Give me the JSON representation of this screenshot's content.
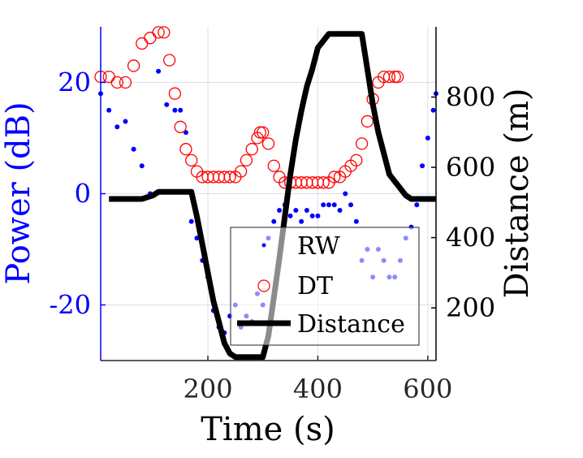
{
  "chart_data": {
    "type": "line",
    "xlabel": "Time (s)",
    "ylabel_left": "Power (dB)",
    "ylabel_right": "Distance (m)",
    "xlim": [
      5,
      615
    ],
    "ylim_left": [
      -30,
      30
    ],
    "ylim_right": [
      50,
      1000
    ],
    "xticks": [
      200,
      400,
      600
    ],
    "yticks_left": [
      -20,
      0,
      20
    ],
    "yticks_right": [
      200,
      400,
      600,
      800
    ],
    "grid": true,
    "legend_position": "bottom-right",
    "colors": {
      "rw": "#0000ff",
      "dt": "#ff0000",
      "distance": "#000000",
      "left_axis": "#0000ff"
    },
    "series": [
      {
        "name": "RW",
        "marker": "dot",
        "axis": "left",
        "x": [
          5,
          20,
          35,
          50,
          65,
          80,
          95,
          110,
          125,
          140,
          150,
          160,
          170,
          180,
          190,
          200,
          210,
          220,
          230,
          240,
          250,
          260,
          270,
          280,
          290,
          300,
          310,
          320,
          330,
          340,
          350,
          360,
          370,
          380,
          390,
          400,
          410,
          420,
          430,
          440,
          450,
          460,
          470,
          480,
          490,
          500,
          510,
          520,
          530,
          540,
          550,
          560,
          570,
          580,
          590,
          600,
          610,
          615
        ],
        "y": [
          18,
          15,
          12,
          13,
          8,
          5,
          0,
          22,
          16,
          15,
          15,
          11,
          -5,
          -8,
          -12,
          -15,
          -21,
          -24,
          -25,
          -22,
          -20,
          -24,
          -22,
          -23,
          -18,
          -20,
          -8,
          -5,
          -3,
          -2,
          -4,
          -3,
          -5,
          -3,
          -4,
          -4,
          -2,
          -2,
          -2,
          -3,
          0,
          -2,
          -5,
          -12,
          -10,
          -15,
          -10,
          -12,
          -15,
          -15,
          -12,
          -8,
          -6,
          -2,
          5,
          10,
          15,
          18
        ]
      },
      {
        "name": "DT",
        "marker": "circle",
        "axis": "left",
        "x": [
          5,
          20,
          35,
          50,
          65,
          80,
          95,
          110,
          120,
          130,
          140,
          150,
          160,
          170,
          180,
          190,
          200,
          210,
          220,
          230,
          240,
          250,
          260,
          270,
          280,
          290,
          295,
          300,
          310,
          320,
          330,
          340,
          350,
          360,
          370,
          380,
          390,
          400,
          410,
          420,
          430,
          440,
          450,
          460,
          470,
          480,
          490,
          500,
          510,
          520,
          530,
          540,
          545
        ],
        "y": [
          21,
          21,
          20,
          20,
          23,
          27,
          28,
          29,
          29,
          24,
          18,
          12,
          8,
          6,
          4,
          3,
          3,
          3,
          3,
          3,
          3,
          3,
          4,
          6,
          8,
          10,
          11,
          11,
          9,
          5,
          3,
          2,
          2,
          2,
          2,
          2,
          2,
          2,
          2,
          2,
          3,
          3,
          4,
          5,
          6,
          9,
          13,
          17,
          20,
          21,
          21,
          21,
          21
        ]
      },
      {
        "name": "Distance",
        "marker": "line",
        "axis": "right",
        "x": [
          20,
          80,
          100,
          110,
          170,
          180,
          190,
          200,
          210,
          220,
          230,
          240,
          250,
          260,
          300,
          310,
          320,
          330,
          340,
          350,
          360,
          370,
          380,
          390,
          400,
          410,
          420,
          430,
          440,
          450,
          460,
          470,
          480,
          490,
          500,
          510,
          520,
          530,
          540,
          550,
          560,
          570,
          580,
          590,
          600,
          610,
          615
        ],
        "y": [
          510,
          510,
          520,
          530,
          530,
          460,
          380,
          300,
          220,
          160,
          100,
          70,
          60,
          60,
          60,
          120,
          230,
          340,
          460,
          580,
          680,
          760,
          830,
          880,
          940,
          960,
          980,
          980,
          980,
          980,
          980,
          980,
          980,
          880,
          780,
          700,
          640,
          580,
          560,
          540,
          520,
          510,
          510,
          510,
          510,
          510,
          510
        ]
      }
    ]
  }
}
